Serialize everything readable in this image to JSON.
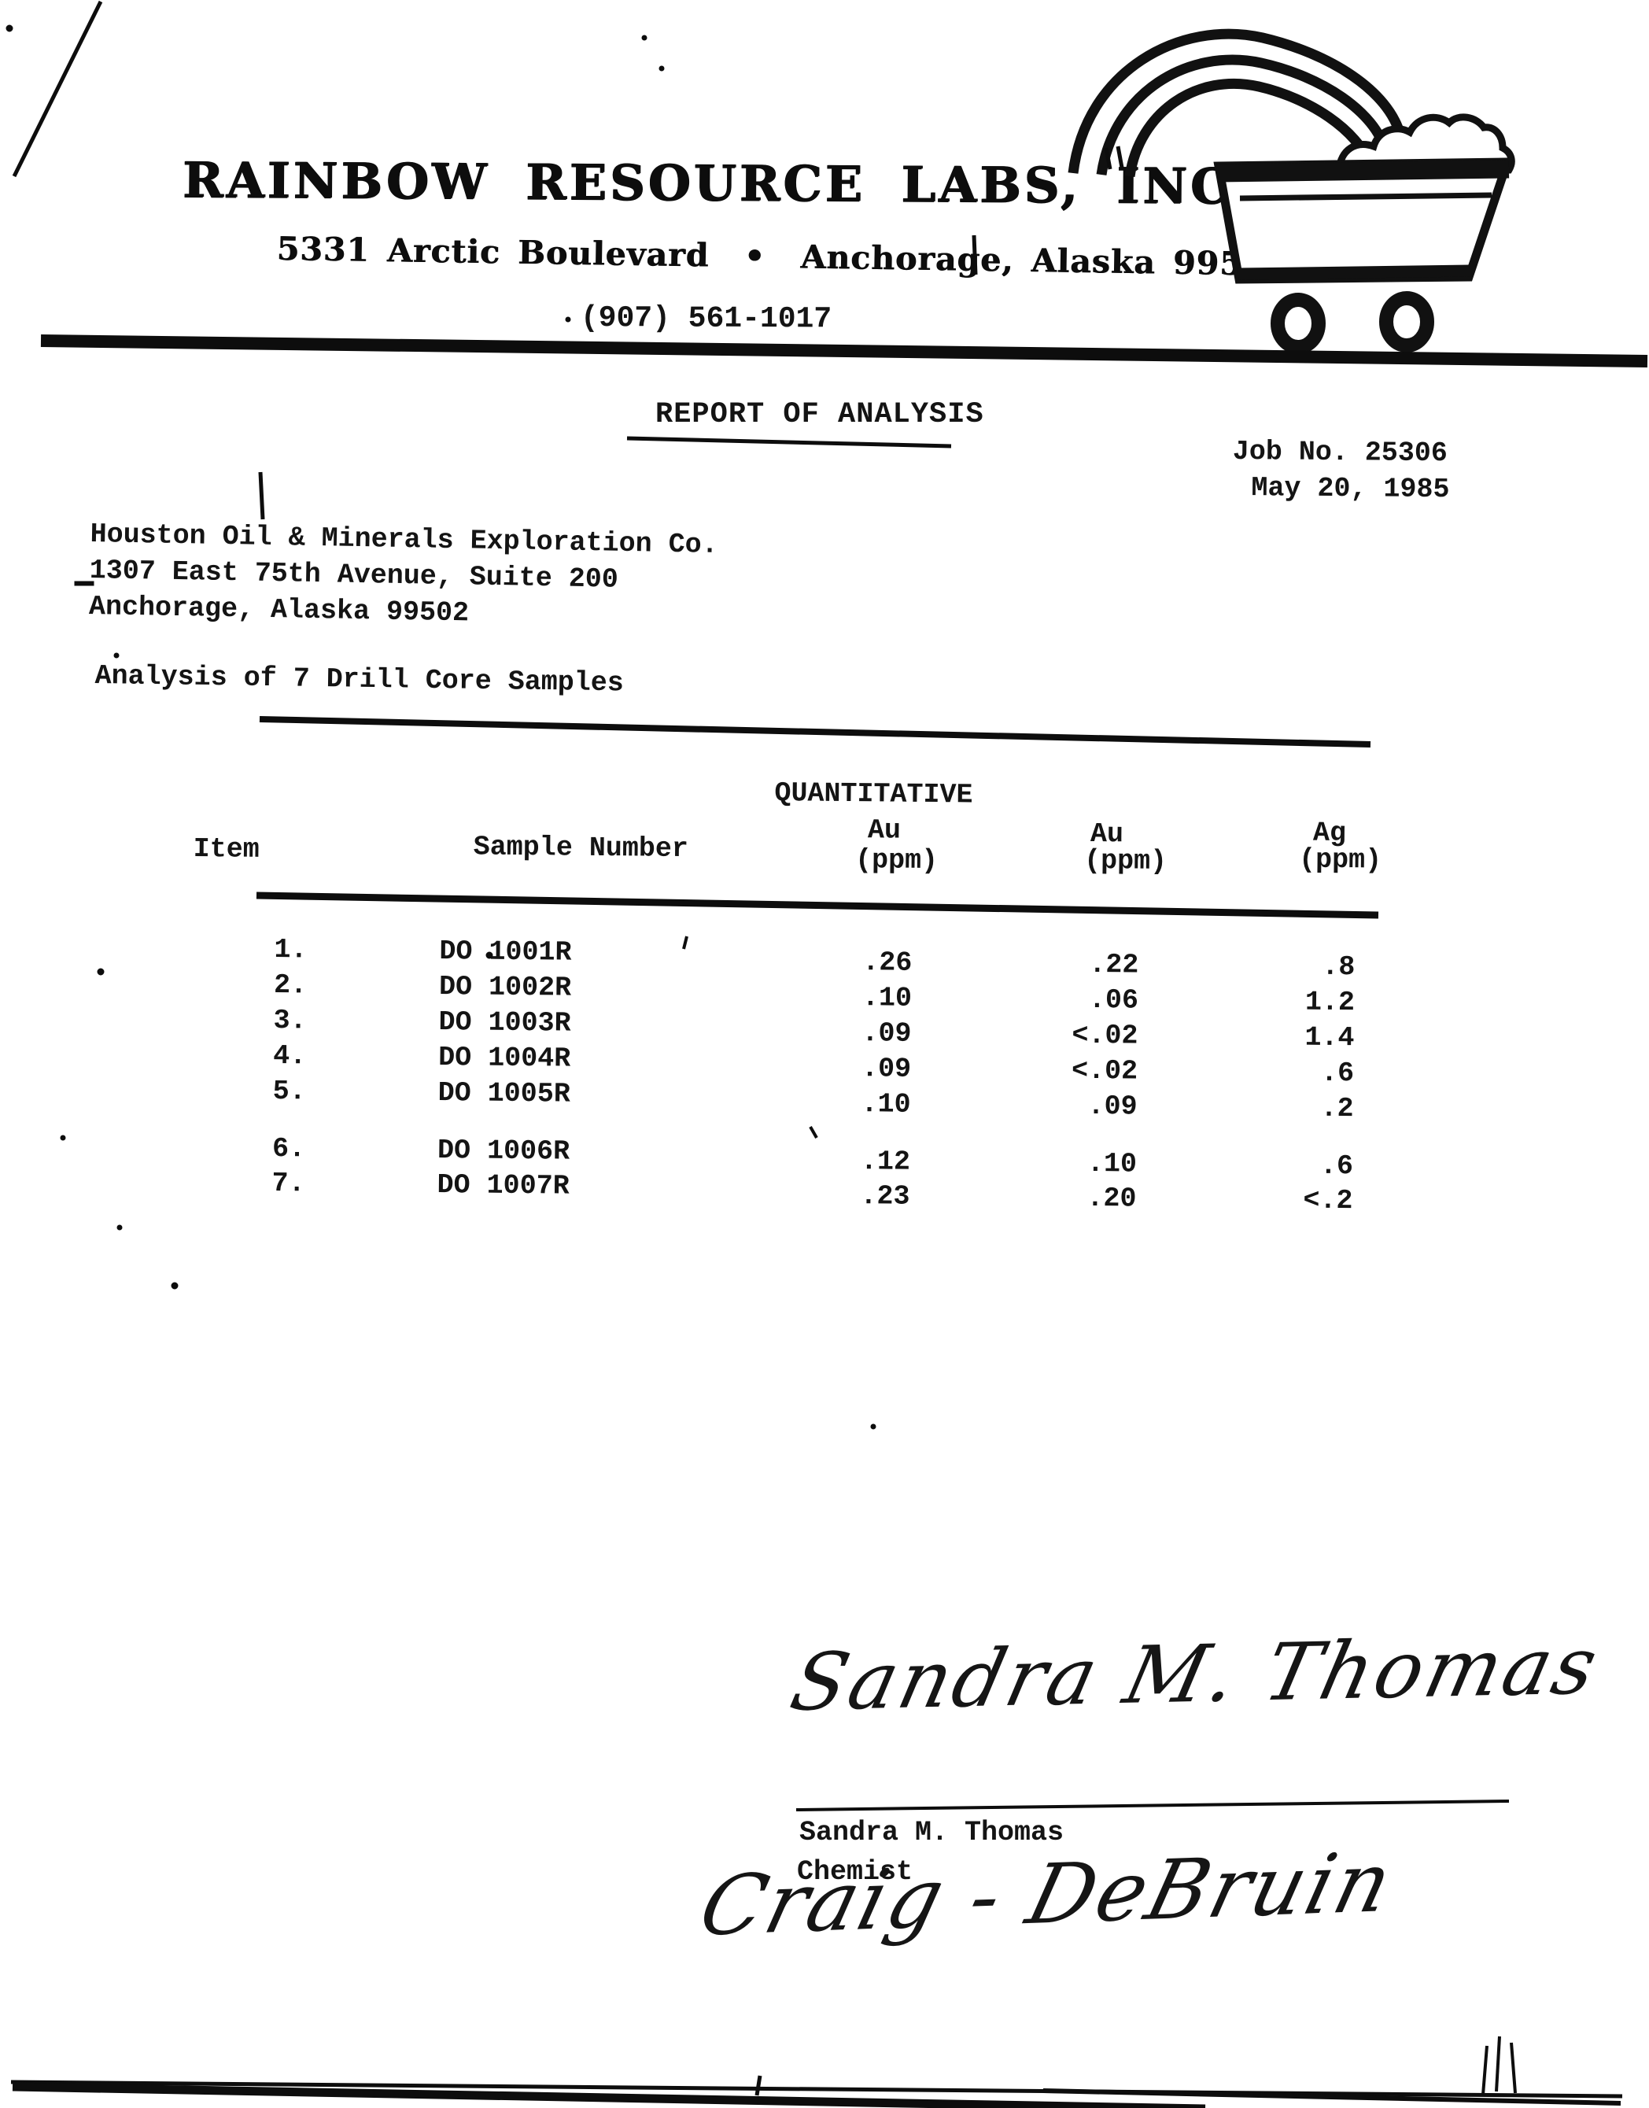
{
  "header": {
    "company": "RAINBOW RESOURCE LABS, INC.",
    "address": "5331 Arctic Boulevard  •  Anchorage, Alaska 99502",
    "phone": "(907) 561-1017"
  },
  "logo": {
    "name": "rainbow-ore-cart-logo"
  },
  "report": {
    "title": "REPORT OF ANALYSIS",
    "job_no": "Job No. 25306",
    "date": "May 20, 1985",
    "addressee_line1": "Houston Oil & Minerals Exploration Co.",
    "addressee_line2": "1307 East 75th Avenue, Suite 200",
    "addressee_line3": "Anchorage, Alaska 99502",
    "subject": "Analysis of 7 Drill Core Samples"
  },
  "table": {
    "group_header": "QUANTITATIVE",
    "columns": [
      {
        "label": "Item"
      },
      {
        "label": "Sample Number"
      },
      {
        "element": "Au",
        "unit": "(ppm)"
      },
      {
        "element": "Au",
        "unit": "(ppm)"
      },
      {
        "element": "Ag",
        "unit": "(ppm)"
      }
    ],
    "rows": [
      {
        "item": "1.",
        "sample": "DO 1001R",
        "au_quant": ".26",
        "au": ".22",
        "ag": ".8"
      },
      {
        "item": "2.",
        "sample": "DO 1002R",
        "au_quant": ".10",
        "au": ".06",
        "ag": "1.2"
      },
      {
        "item": "3.",
        "sample": "DO 1003R",
        "au_quant": ".09",
        "au": "<.02",
        "ag": "1.4"
      },
      {
        "item": "4.",
        "sample": "DO 1004R",
        "au_quant": ".09",
        "au": "<.02",
        "ag": ".6"
      },
      {
        "item": "5.",
        "sample": "DO 1005R",
        "au_quant": ".10",
        "au": ".09",
        "ag": ".2"
      },
      {
        "item": "6.",
        "sample": "DO 1006R",
        "au_quant": ".12",
        "au": ".10",
        "ag": ".6"
      },
      {
        "item": "7.",
        "sample": "DO 1007R",
        "au_quant": ".23",
        "au": ".20",
        "ag": "<.2"
      }
    ]
  },
  "signature": {
    "script": "Sandra M. Thomas",
    "typed_name": "Sandra M. Thomas",
    "typed_title": "Chemist"
  },
  "note": {
    "script": "Craig - DeBruin"
  }
}
